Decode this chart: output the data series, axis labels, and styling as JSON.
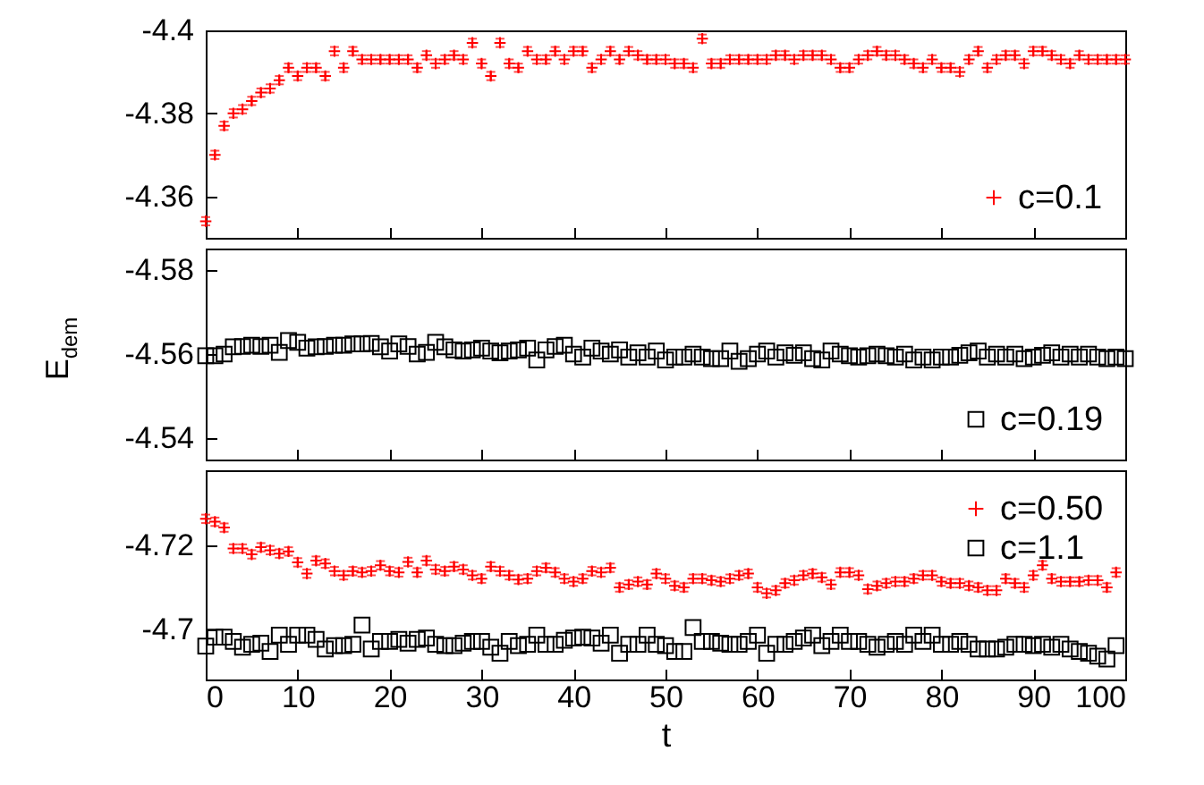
{
  "chart_data": [
    {
      "type": "scatter",
      "x": [
        0,
        1,
        2,
        3,
        4,
        5,
        6,
        7,
        8,
        9,
        10,
        11,
        12,
        13,
        14,
        15,
        16,
        17,
        18,
        19,
        20,
        21,
        22,
        23,
        24,
        25,
        26,
        27,
        28,
        29,
        30,
        31,
        32,
        33,
        34,
        35,
        36,
        37,
        38,
        39,
        40,
        41,
        42,
        43,
        44,
        45,
        46,
        47,
        48,
        49,
        50,
        51,
        52,
        53,
        54,
        55,
        56,
        57,
        58,
        59,
        60,
        61,
        62,
        63,
        64,
        65,
        66,
        67,
        68,
        69,
        70,
        71,
        72,
        73,
        74,
        75,
        76,
        77,
        78,
        79,
        80,
        81,
        82,
        83,
        84,
        85,
        86,
        87,
        88,
        89,
        90,
        91,
        92,
        93,
        94,
        95,
        96,
        97,
        98,
        99,
        100
      ],
      "xlim": [
        0,
        100
      ],
      "xticks": [
        0,
        10,
        20,
        30,
        40,
        50,
        60,
        70,
        80,
        90,
        100
      ],
      "ylim": [
        -4.35,
        -4.4
      ],
      "yticks": [
        -4.4,
        -4.38,
        -4.36
      ],
      "tick_labels": "y",
      "marker": "cross",
      "legend": "bottom right",
      "series": [
        {
          "name": "c=0.1",
          "color": "#ff0000",
          "values": [
            -4.354,
            -4.37,
            -4.377,
            -4.38,
            -4.381,
            -4.383,
            -4.385,
            -4.386,
            -4.388,
            -4.391,
            -4.389,
            -4.391,
            -4.391,
            -4.389,
            -4.395,
            -4.391,
            -4.395,
            -4.393,
            -4.393,
            -4.393,
            -4.393,
            -4.393,
            -4.393,
            -4.391,
            -4.394,
            -4.392,
            -4.393,
            -4.394,
            -4.393,
            -4.397,
            -4.392,
            -4.389,
            -4.397,
            -4.392,
            -4.391,
            -4.395,
            -4.393,
            -4.393,
            -4.395,
            -4.393,
            -4.395,
            -4.395,
            -4.391,
            -4.393,
            -4.395,
            -4.393,
            -4.395,
            -4.394,
            -4.393,
            -4.393,
            -4.393,
            -4.392,
            -4.392,
            -4.391,
            -4.398,
            -4.392,
            -4.392,
            -4.393,
            -4.393,
            -4.393,
            -4.393,
            -4.393,
            -4.394,
            -4.394,
            -4.393,
            -4.394,
            -4.394,
            -4.394,
            -4.393,
            -4.391,
            -4.391,
            -4.393,
            -4.394,
            -4.395,
            -4.394,
            -4.394,
            -4.393,
            -4.392,
            -4.391,
            -4.393,
            -4.391,
            -4.391,
            -4.39,
            -4.393,
            -4.395,
            -4.391,
            -4.393,
            -4.394,
            -4.394,
            -4.392,
            -4.395,
            -4.395,
            -4.394,
            -4.393,
            -4.392,
            -4.394,
            -4.393,
            -4.393,
            -4.393,
            -4.393,
            -4.393
          ],
          "errors": [
            0.001,
            0.001,
            0.001,
            0.001,
            0.001,
            0.001,
            0.001,
            0.001,
            0.001,
            0.001,
            0.001,
            0.001,
            0.001,
            0.001,
            0.001,
            0.001,
            0.001,
            0.001,
            0.001,
            0.001,
            0.001,
            0.001,
            0.001,
            0.001,
            0.001,
            0.001,
            0.001,
            0.001,
            0.001,
            0.001,
            0.001,
            0.001,
            0.001,
            0.001,
            0.001,
            0.001,
            0.001,
            0.001,
            0.001,
            0.001,
            0.001,
            0.001,
            0.001,
            0.001,
            0.001,
            0.001,
            0.001,
            0.001,
            0.001,
            0.001,
            0.001,
            0.001,
            0.001,
            0.001,
            0.001,
            0.001,
            0.001,
            0.001,
            0.001,
            0.001,
            0.001,
            0.001,
            0.001,
            0.001,
            0.001,
            0.001,
            0.001,
            0.001,
            0.001,
            0.001,
            0.001,
            0.001,
            0.001,
            0.001,
            0.001,
            0.001,
            0.001,
            0.001,
            0.001,
            0.001,
            0.001,
            0.001,
            0.001,
            0.001,
            0.001,
            0.001,
            0.001,
            0.001,
            0.001,
            0.001,
            0.001,
            0.001,
            0.001,
            0.001,
            0.001,
            0.001,
            0.001,
            0.001,
            0.001,
            0.001,
            0.001
          ]
        }
      ]
    },
    {
      "type": "scatter",
      "x": [
        0,
        1,
        2,
        3,
        4,
        5,
        6,
        7,
        8,
        9,
        10,
        11,
        12,
        13,
        14,
        15,
        16,
        17,
        18,
        19,
        20,
        21,
        22,
        23,
        24,
        25,
        26,
        27,
        28,
        29,
        30,
        31,
        32,
        33,
        34,
        35,
        36,
        37,
        38,
        39,
        40,
        41,
        42,
        43,
        44,
        45,
        46,
        47,
        48,
        49,
        50,
        51,
        52,
        53,
        54,
        55,
        56,
        57,
        58,
        59,
        60,
        61,
        62,
        63,
        64,
        65,
        66,
        67,
        68,
        69,
        70,
        71,
        72,
        73,
        74,
        75,
        76,
        77,
        78,
        79,
        80,
        81,
        82,
        83,
        84,
        85,
        86,
        87,
        88,
        89,
        90,
        91,
        92,
        93,
        94,
        95,
        96,
        97,
        98,
        99,
        100
      ],
      "xlim": [
        0,
        100
      ],
      "xticks": [
        0,
        10,
        20,
        30,
        40,
        50,
        60,
        70,
        80,
        90,
        100
      ],
      "ylim": [
        -4.535,
        -4.585
      ],
      "yticks": [
        -4.58,
        -4.56,
        -4.54
      ],
      "tick_labels": "y",
      "ylabel": "E$_{dem}$",
      "marker": "square",
      "legend": "bottom right",
      "series": [
        {
          "name": "c=0.19",
          "color": "#000000",
          "values": [
            -4.5596,
            -4.5596,
            -4.56,
            -4.5617,
            -4.5618,
            -4.5621,
            -4.5618,
            -4.5621,
            -4.5604,
            -4.5632,
            -4.5628,
            -4.5614,
            -4.5617,
            -4.5618,
            -4.5621,
            -4.5621,
            -4.5624,
            -4.5624,
            -4.5625,
            -4.5617,
            -4.5607,
            -4.5624,
            -4.5618,
            -4.56,
            -4.5604,
            -4.5628,
            -4.5617,
            -4.561,
            -4.5607,
            -4.561,
            -4.5614,
            -4.5607,
            -4.5603,
            -4.5607,
            -4.561,
            -4.5614,
            -4.5586,
            -4.561,
            -4.5618,
            -4.5621,
            -4.56,
            -4.5593,
            -4.5614,
            -4.5607,
            -4.56,
            -4.561,
            -4.5593,
            -4.5603,
            -4.5593,
            -4.5607,
            -4.5586,
            -4.5593,
            -4.5593,
            -4.56,
            -4.5593,
            -4.5589,
            -4.5589,
            -4.5607,
            -4.5583,
            -4.5589,
            -4.56,
            -4.5607,
            -4.5593,
            -4.5603,
            -4.5597,
            -4.5603,
            -4.5589,
            -4.5586,
            -4.5607,
            -4.56,
            -4.5596,
            -4.5593,
            -4.5596,
            -4.56,
            -4.5596,
            -4.5593,
            -4.56,
            -4.5586,
            -4.5593,
            -4.5586,
            -4.5593,
            -4.5593,
            -4.5597,
            -4.5603,
            -4.5607,
            -4.5593,
            -4.56,
            -4.5593,
            -4.56,
            -4.5589,
            -4.5593,
            -4.5597,
            -4.5603,
            -4.5593,
            -4.56,
            -4.5593,
            -4.56,
            -4.5593,
            -4.5589,
            -4.5593,
            -4.5589
          ]
        }
      ]
    },
    {
      "type": "scatter",
      "x": [
        0,
        1,
        2,
        3,
        4,
        5,
        6,
        7,
        8,
        9,
        10,
        11,
        12,
        13,
        14,
        15,
        16,
        17,
        18,
        19,
        20,
        21,
        22,
        23,
        24,
        25,
        26,
        27,
        28,
        29,
        30,
        31,
        32,
        33,
        34,
        35,
        36,
        37,
        38,
        39,
        40,
        41,
        42,
        43,
        44,
        45,
        46,
        47,
        48,
        49,
        50,
        51,
        52,
        53,
        54,
        55,
        56,
        57,
        58,
        59,
        60,
        61,
        62,
        63,
        64,
        65,
        66,
        67,
        68,
        69,
        70,
        71,
        72,
        73,
        74,
        75,
        76,
        77,
        78,
        79,
        80,
        81,
        82,
        83,
        84,
        85,
        86,
        87,
        88,
        89,
        90,
        91,
        92,
        93,
        94,
        95,
        96,
        97,
        98,
        99
      ],
      "xlim": [
        0,
        100
      ],
      "xticks": [
        0,
        10,
        20,
        30,
        40,
        50,
        60,
        70,
        80,
        90,
        100
      ],
      "ylim": [
        -4.688,
        -4.738
      ],
      "yticks": [
        -4.72,
        -4.7
      ],
      "xlabel": "t",
      "legend": "top right",
      "series": [
        {
          "name": "c=0.50",
          "color": "#ff0000",
          "marker": "cross",
          "values": [
            -4.7264,
            -4.7257,
            -4.7243,
            -4.7193,
            -4.7193,
            -4.7179,
            -4.7196,
            -4.7189,
            -4.7181,
            -4.7186,
            -4.716,
            -4.7133,
            -4.7164,
            -4.7157,
            -4.7139,
            -4.7129,
            -4.7139,
            -4.7136,
            -4.7139,
            -4.7153,
            -4.7139,
            -4.7136,
            -4.7161,
            -4.7136,
            -4.7164,
            -4.7143,
            -4.7139,
            -4.715,
            -4.7143,
            -4.7129,
            -4.7121,
            -4.715,
            -4.7139,
            -4.7129,
            -4.7119,
            -4.7121,
            -4.7139,
            -4.7147,
            -4.7136,
            -4.7121,
            -4.7114,
            -4.7121,
            -4.7139,
            -4.7136,
            -4.7147,
            -4.71,
            -4.7107,
            -4.7114,
            -4.7107,
            -4.7133,
            -4.7121,
            -4.7104,
            -4.71,
            -4.7121,
            -4.7121,
            -4.7117,
            -4.7114,
            -4.7121,
            -4.7129,
            -4.7133,
            -4.71,
            -4.7086,
            -4.7093,
            -4.711,
            -4.7117,
            -4.7129,
            -4.7133,
            -4.7124,
            -4.7107,
            -4.7136,
            -4.7136,
            -4.7129,
            -4.7096,
            -4.7104,
            -4.711,
            -4.7114,
            -4.7114,
            -4.7121,
            -4.7129,
            -4.7129,
            -4.7114,
            -4.711,
            -4.711,
            -4.7104,
            -4.71,
            -4.7093,
            -4.7093,
            -4.7121,
            -4.711,
            -4.71,
            -4.7129,
            -4.7153,
            -4.7121,
            -4.7114,
            -4.7114,
            -4.7114,
            -4.7117,
            -4.7117,
            -4.71,
            -4.7136
          ],
          "errors": [
            0.001,
            0.001,
            0.001,
            0.001,
            0.001,
            0.001,
            0.001,
            0.001,
            0.001,
            0.001,
            0.001,
            0.001,
            0.001,
            0.001,
            0.001,
            0.001,
            0.001,
            0.001,
            0.001,
            0.001,
            0.001,
            0.001,
            0.001,
            0.001,
            0.001,
            0.001,
            0.001,
            0.001,
            0.001,
            0.001,
            0.001,
            0.001,
            0.001,
            0.001,
            0.001,
            0.001,
            0.001,
            0.001,
            0.001,
            0.001,
            0.001,
            0.001,
            0.001,
            0.001,
            0.001,
            0.001,
            0.001,
            0.001,
            0.001,
            0.001,
            0.001,
            0.001,
            0.001,
            0.001,
            0.001,
            0.001,
            0.001,
            0.001,
            0.001,
            0.001,
            0.001,
            0.001,
            0.001,
            0.001,
            0.001,
            0.001,
            0.001,
            0.001,
            0.001,
            0.001,
            0.001,
            0.001,
            0.001,
            0.001,
            0.001,
            0.001,
            0.001,
            0.001,
            0.001,
            0.001,
            0.001,
            0.001,
            0.001,
            0.001,
            0.001,
            0.001,
            0.001,
            0.001,
            0.001,
            0.001,
            0.001,
            0.001,
            0.001,
            0.001,
            0.001,
            0.001,
            0.001,
            0.001,
            0.001,
            0.001
          ]
        },
        {
          "name": "c=1.1",
          "color": "#000000",
          "marker": "square",
          "values": [
            -4.696,
            -4.6981,
            -4.6981,
            -4.6971,
            -4.6957,
            -4.6964,
            -4.6967,
            -4.6947,
            -4.6986,
            -4.6964,
            -4.6986,
            -4.6986,
            -4.6976,
            -4.6953,
            -4.6961,
            -4.6961,
            -4.6964,
            -4.701,
            -4.6953,
            -4.6971,
            -4.6971,
            -4.6976,
            -4.6967,
            -4.6976,
            -4.6979,
            -4.6964,
            -4.6961,
            -4.6961,
            -4.6967,
            -4.6971,
            -4.6971,
            -4.6957,
            -4.6943,
            -4.6971,
            -4.6961,
            -4.6964,
            -4.6986,
            -4.6964,
            -4.6964,
            -4.6974,
            -4.6979,
            -4.6981,
            -4.6979,
            -4.6967,
            -4.6986,
            -4.6943,
            -4.6964,
            -4.6964,
            -4.6986,
            -4.6964,
            -4.6961,
            -4.6947,
            -4.6947,
            -4.7004,
            -4.6971,
            -4.6971,
            -4.6967,
            -4.6964,
            -4.6964,
            -4.6971,
            -4.6986,
            -4.6943,
            -4.6964,
            -4.6964,
            -4.6971,
            -4.6979,
            -4.6986,
            -4.6961,
            -4.6971,
            -4.6986,
            -4.6971,
            -4.6971,
            -4.6964,
            -4.6957,
            -4.6964,
            -4.6971,
            -4.6964,
            -4.6986,
            -4.6971,
            -4.6986,
            -4.6964,
            -4.6964,
            -4.6971,
            -4.6964,
            -4.6953,
            -4.6953,
            -4.6953,
            -4.6957,
            -4.6964,
            -4.6964,
            -4.6961,
            -4.6964,
            -4.6957,
            -4.6964,
            -4.6953,
            -4.6947,
            -4.6943,
            -4.6936,
            -4.6929,
            -4.6961
          ]
        }
      ]
    }
  ]
}
